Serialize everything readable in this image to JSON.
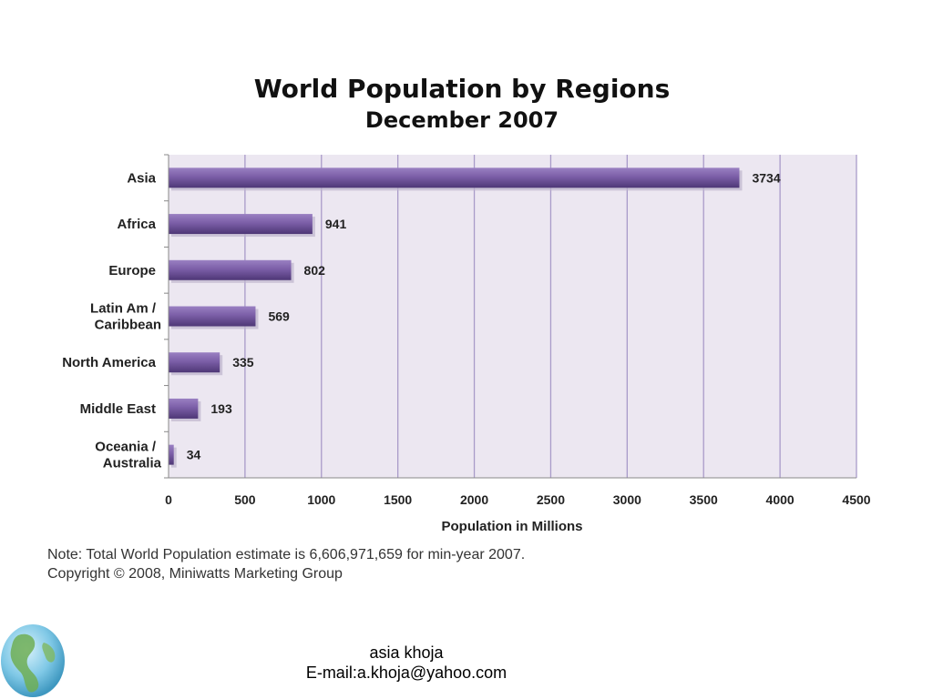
{
  "chart_data": {
    "type": "bar",
    "orientation": "horizontal",
    "title": "World Population by Regions",
    "subtitle": "December 2007",
    "categories": [
      "Asia",
      "Africa",
      "Europe",
      "Latin Am / Caribbean",
      "North America",
      "Middle East",
      "Oceania / Australia"
    ],
    "values": [
      3734,
      941,
      802,
      569,
      335,
      193,
      34
    ],
    "xlabel": "Population in Millions",
    "ylabel": "",
    "xlim": [
      0,
      4500
    ],
    "xticks": [
      0,
      500,
      1000,
      1500,
      2000,
      2500,
      3000,
      3500,
      4000,
      4500
    ],
    "grid": true,
    "bar_color": "#7b5ea7",
    "plot_background": "#ece7f1",
    "grid_color": "#a99bc9"
  },
  "notes": {
    "line1": "Note: Total World Population estimate is 6,606,971,659 for min-year 2007.",
    "line2": "Copyright © 2008, Miniwatts Marketing Group"
  },
  "footer": {
    "name": "asia khoja",
    "email": "E-mail:a.khoja@yahoo.com"
  },
  "icons": {
    "globe": "globe-icon"
  }
}
